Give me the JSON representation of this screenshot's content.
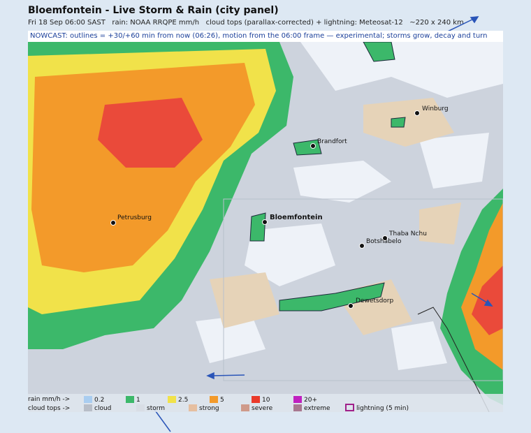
{
  "header": {
    "title": "Bloemfontein - Live Storm & Rain (city panel)",
    "subtitle": "Fri 18 Sep 06:00 SAST   rain: NOAA RRQPE mm/h   cloud tops (parallax-corrected) + lightning: Meteosat-12   ~220 x 240 km"
  },
  "banner": "NOWCAST: outlines = +30/+60 min from now (06:26), motion from the 06:00 frame — experimental; storms grow, decay and turn",
  "cities": [
    {
      "label": "Winburg"
    },
    {
      "label": "Brandfort"
    },
    {
      "label": "Petrusburg"
    },
    {
      "label": "Bloemfontein"
    },
    {
      "label": "Thaba Nchu"
    },
    {
      "label": "Botshabelo"
    },
    {
      "label": "Dewetsdorp"
    }
  ],
  "legend": {
    "rain_title": "rain mm/h ->",
    "rain": [
      "0.2",
      "1",
      "2.5",
      "5",
      "10",
      "20+"
    ],
    "cloud_title": "cloud tops ->",
    "cloud": [
      "cloud",
      "storm",
      "strong",
      "severe",
      "extreme"
    ],
    "lightning": "lightning (5 min)"
  }
}
